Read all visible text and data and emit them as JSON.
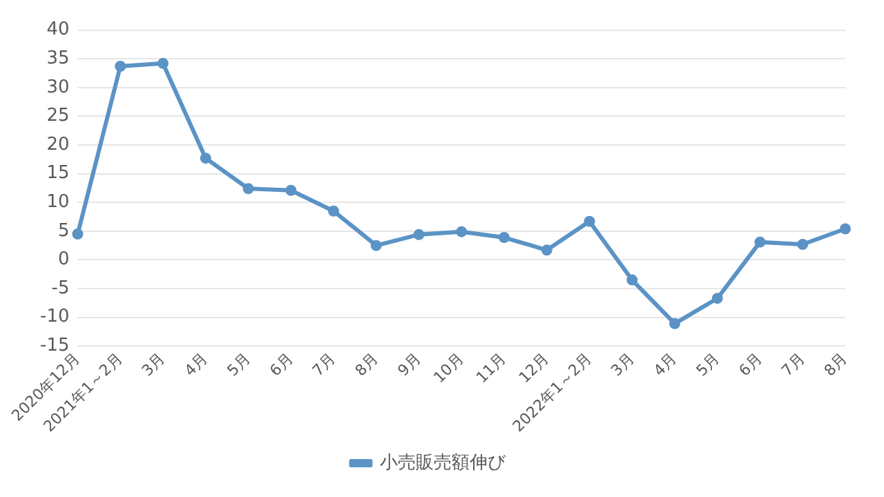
{
  "chart_data": {
    "type": "line",
    "categories": [
      "2020年12月",
      "2021年1～2月",
      "3月",
      "4月",
      "5月",
      "6月",
      "7月",
      "8月",
      "9月",
      "10月",
      "11月",
      "12月",
      "2022年1～2月",
      "3月",
      "4月",
      "5月",
      "6月",
      "7月",
      "8月"
    ],
    "series": [
      {
        "name": "小売販売額伸び",
        "color": "#5b93c5",
        "values": [
          4.5,
          33.7,
          34.2,
          17.7,
          12.4,
          12.1,
          8.5,
          2.5,
          4.4,
          4.9,
          3.9,
          1.7,
          6.7,
          -3.5,
          -11.1,
          -6.7,
          3.1,
          2.7,
          5.4
        ]
      }
    ],
    "ylim": [
      -15,
      40
    ],
    "yticks": [
      -15,
      -10,
      -5,
      0,
      5,
      10,
      15,
      20,
      25,
      30,
      35,
      40
    ],
    "grid": "y",
    "legend": "bottom",
    "marker": "circle",
    "line_style": "solid"
  }
}
